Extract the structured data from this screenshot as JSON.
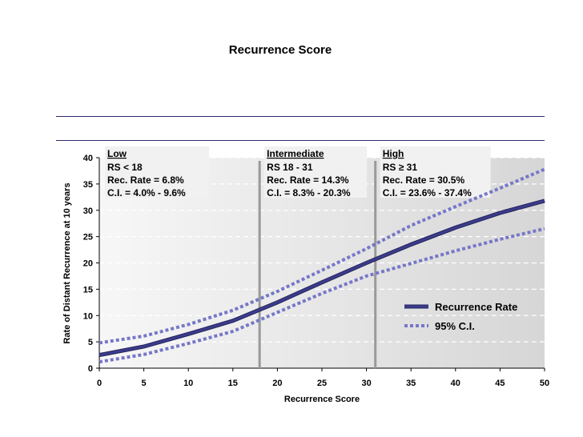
{
  "slide": {
    "title": "Recurrence Score"
  },
  "chart_data": {
    "type": "line",
    "title": "",
    "xlabel": "Recurrence Score",
    "ylabel": "Rate of Distant Recurrence at 10 years",
    "xlim": [
      0,
      50
    ],
    "ylim": [
      0,
      40
    ],
    "xticks": [
      0,
      5,
      10,
      15,
      20,
      25,
      30,
      35,
      40,
      45,
      50
    ],
    "yticks": [
      0,
      5,
      10,
      15,
      20,
      25,
      30,
      35,
      40
    ],
    "grid": "horizontal dashed",
    "legend_position": "lower-right",
    "colors": {
      "main": "#3c3c8c",
      "ci": "#7777c8",
      "threshold": "#999999"
    },
    "thresholds": [
      18,
      31
    ],
    "bands": [
      {
        "name": "Low",
        "lines": [
          "RS < 18",
          "Rec. Rate = 6.8%",
          "C.I. = 4.0% - 9.6%"
        ]
      },
      {
        "name": "Intermediate",
        "lines": [
          "RS 18 - 31",
          "Rec. Rate = 14.3%",
          "C.I. = 8.3% - 20.3%"
        ]
      },
      {
        "name": "High",
        "lines": [
          "RS ≥ 31",
          "Rec. Rate = 30.5%",
          "C.I. = 23.6% - 37.4%"
        ]
      }
    ],
    "series": [
      {
        "name": "Recurrence Rate",
        "style": "solid",
        "x": [
          0,
          5,
          10,
          15,
          20,
          25,
          30,
          35,
          40,
          45,
          50
        ],
        "y": [
          2.5,
          4.1,
          6.5,
          9.0,
          12.5,
          16.3,
          20.0,
          23.5,
          26.7,
          29.5,
          31.8
        ]
      },
      {
        "name": "95% C.I.",
        "style": "dotted",
        "x": [
          0,
          5,
          10,
          15,
          20,
          25,
          30,
          35,
          40,
          45,
          50
        ],
        "y": [
          4.8,
          6.1,
          8.3,
          11.0,
          14.6,
          18.6,
          22.7,
          27.1,
          30.7,
          34.2,
          37.8
        ]
      },
      {
        "name": "",
        "style": "dotted",
        "x": [
          0,
          5,
          10,
          15,
          20,
          25,
          30,
          35,
          40,
          45,
          50
        ],
        "y": [
          1.2,
          2.6,
          4.7,
          7.0,
          10.6,
          14.2,
          17.5,
          19.9,
          22.3,
          24.5,
          26.5
        ]
      }
    ]
  }
}
